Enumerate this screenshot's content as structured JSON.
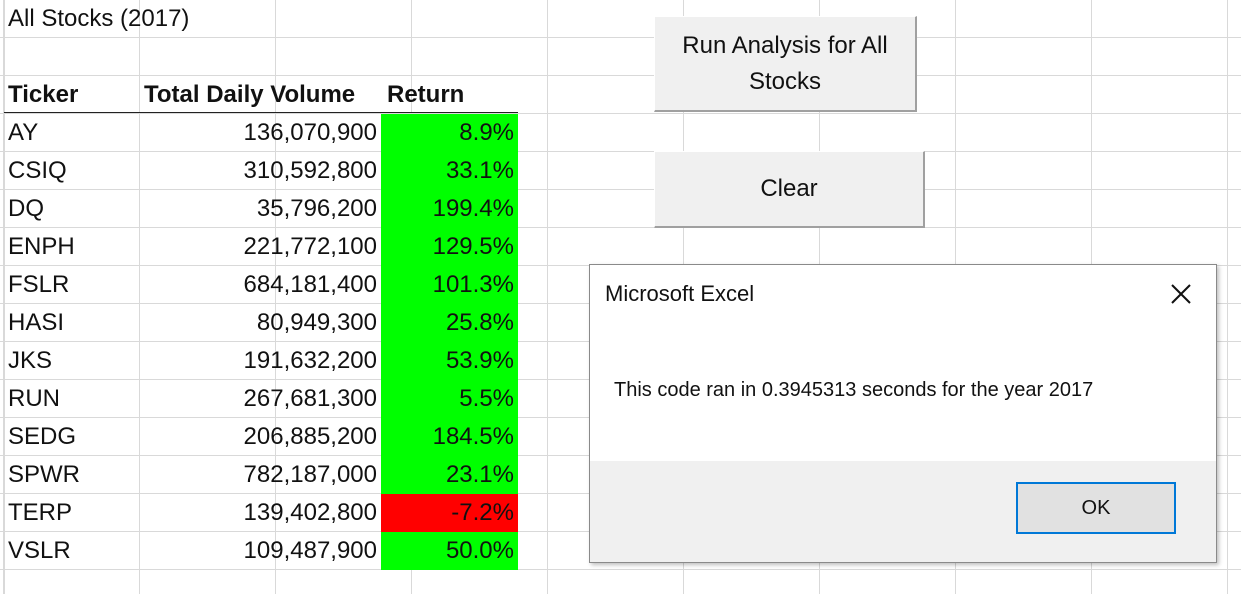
{
  "sheet": {
    "title": "All Stocks (2017)",
    "headers": {
      "ticker": "Ticker",
      "volume": "Total Daily Volume",
      "return": "Return"
    },
    "rows": [
      {
        "ticker": "AY",
        "volume": "136,070,900",
        "return": "8.9%",
        "status": "positive"
      },
      {
        "ticker": "CSIQ",
        "volume": "310,592,800",
        "return": "33.1%",
        "status": "positive"
      },
      {
        "ticker": "DQ",
        "volume": "35,796,200",
        "return": "199.4%",
        "status": "positive"
      },
      {
        "ticker": "ENPH",
        "volume": "221,772,100",
        "return": "129.5%",
        "status": "positive"
      },
      {
        "ticker": "FSLR",
        "volume": "684,181,400",
        "return": "101.3%",
        "status": "positive"
      },
      {
        "ticker": "HASI",
        "volume": "80,949,300",
        "return": "25.8%",
        "status": "positive"
      },
      {
        "ticker": "JKS",
        "volume": "191,632,200",
        "return": "53.9%",
        "status": "positive"
      },
      {
        "ticker": "RUN",
        "volume": "267,681,300",
        "return": "5.5%",
        "status": "positive"
      },
      {
        "ticker": "SEDG",
        "volume": "206,885,200",
        "return": "184.5%",
        "status": "positive"
      },
      {
        "ticker": "SPWR",
        "volume": "782,187,000",
        "return": "23.1%",
        "status": "positive"
      },
      {
        "ticker": "TERP",
        "volume": "139,402,800",
        "return": "-7.2%",
        "status": "negative"
      },
      {
        "ticker": "VSLR",
        "volume": "109,487,900",
        "return": "50.0%",
        "status": "positive"
      }
    ]
  },
  "buttons": {
    "run_label": "Run Analysis for All Stocks",
    "clear_label": "Clear"
  },
  "dialog": {
    "title": "Microsoft Excel",
    "message": "This code ran in 0.3945313 seconds for the year 2017",
    "ok_label": "OK",
    "close_icon": "close-icon"
  },
  "colors": {
    "positive": "#00ff00",
    "negative": "#ff0000",
    "dialog_focus": "#0078d7"
  }
}
